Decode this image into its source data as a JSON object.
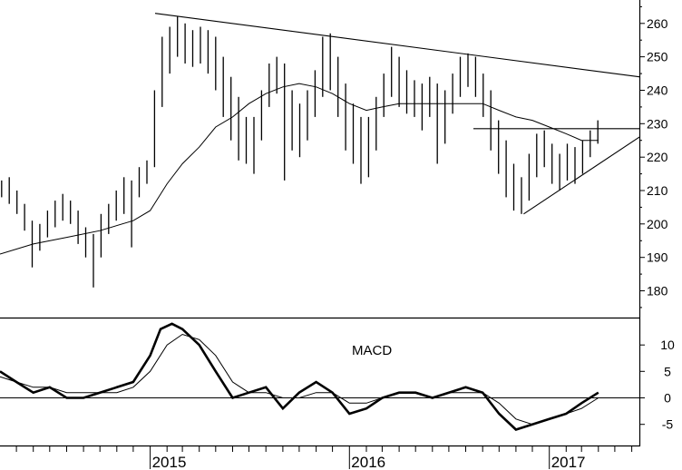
{
  "chart_data": [
    {
      "type": "ohlc",
      "x_axis": {
        "type": "date",
        "ticks": [
          "2015",
          "2016",
          "2017"
        ],
        "tick_dates": [
          "2015-01-01",
          "2016-01-01",
          "2017-01-01"
        ],
        "range": [
          "2014-04-01",
          "2017-06-15"
        ]
      },
      "y_axis": {
        "ticks": [
          180,
          190,
          200,
          210,
          220,
          230,
          240,
          250,
          260
        ],
        "range": [
          172,
          267
        ],
        "position": "right"
      },
      "price_weekly": [
        {
          "t": "2014-04-04",
          "h": 213,
          "l": 208
        },
        {
          "t": "2014-04-18",
          "h": 214,
          "l": 206
        },
        {
          "t": "2014-05-02",
          "h": 210,
          "l": 203
        },
        {
          "t": "2014-05-16",
          "h": 206,
          "l": 198
        },
        {
          "t": "2014-05-30",
          "h": 201,
          "l": 187
        },
        {
          "t": "2014-06-13",
          "h": 200,
          "l": 192
        },
        {
          "t": "2014-06-27",
          "h": 204,
          "l": 196
        },
        {
          "t": "2014-07-11",
          "h": 207,
          "l": 199
        },
        {
          "t": "2014-07-25",
          "h": 209,
          "l": 201
        },
        {
          "t": "2014-08-08",
          "h": 207,
          "l": 200
        },
        {
          "t": "2014-08-22",
          "h": 204,
          "l": 194
        },
        {
          "t": "2014-09-05",
          "h": 199,
          "l": 190
        },
        {
          "t": "2014-09-19",
          "h": 197,
          "l": 181
        },
        {
          "t": "2014-10-03",
          "h": 203,
          "l": 190
        },
        {
          "t": "2014-10-17",
          "h": 206,
          "l": 197
        },
        {
          "t": "2014-10-31",
          "h": 210,
          "l": 201
        },
        {
          "t": "2014-11-14",
          "h": 214,
          "l": 203
        },
        {
          "t": "2014-11-28",
          "h": 213,
          "l": 193
        },
        {
          "t": "2014-12-12",
          "h": 217,
          "l": 208
        },
        {
          "t": "2014-12-26",
          "h": 219,
          "l": 212
        },
        {
          "t": "2015-01-09",
          "h": 240,
          "l": 217
        },
        {
          "t": "2015-01-23",
          "h": 256,
          "l": 235
        },
        {
          "t": "2015-02-06",
          "h": 259,
          "l": 245
        },
        {
          "t": "2015-02-20",
          "h": 262,
          "l": 250
        },
        {
          "t": "2015-03-06",
          "h": 260,
          "l": 248
        },
        {
          "t": "2015-03-20",
          "h": 258,
          "l": 247
        },
        {
          "t": "2015-04-03",
          "h": 259,
          "l": 248
        },
        {
          "t": "2015-04-17",
          "h": 258,
          "l": 245
        },
        {
          "t": "2015-05-01",
          "h": 256,
          "l": 240
        },
        {
          "t": "2015-05-15",
          "h": 250,
          "l": 232
        },
        {
          "t": "2015-05-29",
          "h": 244,
          "l": 225
        },
        {
          "t": "2015-06-12",
          "h": 238,
          "l": 219
        },
        {
          "t": "2015-06-26",
          "h": 232,
          "l": 218
        },
        {
          "t": "2015-07-10",
          "h": 232,
          "l": 215
        },
        {
          "t": "2015-07-24",
          "h": 240,
          "l": 225
        },
        {
          "t": "2015-08-07",
          "h": 248,
          "l": 235
        },
        {
          "t": "2015-08-21",
          "h": 250,
          "l": 239
        },
        {
          "t": "2015-09-04",
          "h": 248,
          "l": 213
        },
        {
          "t": "2015-09-18",
          "h": 240,
          "l": 222
        },
        {
          "t": "2015-10-02",
          "h": 236,
          "l": 220
        },
        {
          "t": "2015-10-16",
          "h": 240,
          "l": 225
        },
        {
          "t": "2015-10-30",
          "h": 246,
          "l": 232
        },
        {
          "t": "2015-11-13",
          "h": 256,
          "l": 238
        },
        {
          "t": "2015-11-27",
          "h": 257,
          "l": 240
        },
        {
          "t": "2015-12-11",
          "h": 250,
          "l": 232
        },
        {
          "t": "2015-12-25",
          "h": 242,
          "l": 222
        },
        {
          "t": "2016-01-08",
          "h": 236,
          "l": 218
        },
        {
          "t": "2016-01-22",
          "h": 232,
          "l": 212
        },
        {
          "t": "2016-02-05",
          "h": 232,
          "l": 214
        },
        {
          "t": "2016-02-19",
          "h": 238,
          "l": 222
        },
        {
          "t": "2016-03-04",
          "h": 245,
          "l": 232
        },
        {
          "t": "2016-03-18",
          "h": 253,
          "l": 238
        },
        {
          "t": "2016-04-01",
          "h": 250,
          "l": 235
        },
        {
          "t": "2016-04-15",
          "h": 246,
          "l": 233
        },
        {
          "t": "2016-04-29",
          "h": 243,
          "l": 232
        },
        {
          "t": "2016-05-13",
          "h": 242,
          "l": 228
        },
        {
          "t": "2016-05-27",
          "h": 244,
          "l": 232
        },
        {
          "t": "2016-06-10",
          "h": 242,
          "l": 218
        },
        {
          "t": "2016-06-24",
          "h": 240,
          "l": 224
        },
        {
          "t": "2016-07-08",
          "h": 245,
          "l": 233
        },
        {
          "t": "2016-07-22",
          "h": 250,
          "l": 238
        },
        {
          "t": "2016-08-05",
          "h": 251,
          "l": 241
        },
        {
          "t": "2016-08-19",
          "h": 250,
          "l": 238
        },
        {
          "t": "2016-09-02",
          "h": 245,
          "l": 232
        },
        {
          "t": "2016-09-16",
          "h": 240,
          "l": 222
        },
        {
          "t": "2016-09-30",
          "h": 231,
          "l": 215
        },
        {
          "t": "2016-10-14",
          "h": 225,
          "l": 208
        },
        {
          "t": "2016-10-28",
          "h": 218,
          "l": 204
        },
        {
          "t": "2016-11-11",
          "h": 214,
          "l": 203
        },
        {
          "t": "2016-11-25",
          "h": 221,
          "l": 207
        },
        {
          "t": "2016-12-09",
          "h": 227,
          "l": 214
        },
        {
          "t": "2016-12-23",
          "h": 228,
          "l": 217
        },
        {
          "t": "2017-01-06",
          "h": 224,
          "l": 212
        },
        {
          "t": "2017-01-20",
          "h": 221,
          "l": 210
        },
        {
          "t": "2017-02-03",
          "h": 224,
          "l": 213
        },
        {
          "t": "2017-02-17",
          "h": 223,
          "l": 212
        },
        {
          "t": "2017-03-03",
          "h": 225,
          "l": 215
        },
        {
          "t": "2017-03-17",
          "h": 228,
          "l": 220
        },
        {
          "t": "2017-03-31",
          "h": 231,
          "l": 224
        }
      ],
      "moving_average": [
        {
          "t": "2014-04-01",
          "v": 191
        },
        {
          "t": "2014-06-01",
          "v": 194
        },
        {
          "t": "2014-08-01",
          "v": 196
        },
        {
          "t": "2014-10-01",
          "v": 198
        },
        {
          "t": "2014-12-01",
          "v": 201
        },
        {
          "t": "2015-01-01",
          "v": 204
        },
        {
          "t": "2015-02-01",
          "v": 212
        },
        {
          "t": "2015-03-01",
          "v": 218
        },
        {
          "t": "2015-04-01",
          "v": 223
        },
        {
          "t": "2015-05-01",
          "v": 229
        },
        {
          "t": "2015-06-01",
          "v": 232
        },
        {
          "t": "2015-07-01",
          "v": 236
        },
        {
          "t": "2015-08-01",
          "v": 239
        },
        {
          "t": "2015-09-01",
          "v": 241
        },
        {
          "t": "2015-10-01",
          "v": 242
        },
        {
          "t": "2015-11-01",
          "v": 241
        },
        {
          "t": "2015-12-01",
          "v": 239
        },
        {
          "t": "2016-01-01",
          "v": 236
        },
        {
          "t": "2016-02-01",
          "v": 234
        },
        {
          "t": "2016-03-01",
          "v": 235
        },
        {
          "t": "2016-04-01",
          "v": 236
        },
        {
          "t": "2016-05-01",
          "v": 236
        },
        {
          "t": "2016-06-01",
          "v": 236
        },
        {
          "t": "2016-07-01",
          "v": 236
        },
        {
          "t": "2016-08-01",
          "v": 236
        },
        {
          "t": "2016-09-01",
          "v": 236
        },
        {
          "t": "2016-10-01",
          "v": 234
        },
        {
          "t": "2016-11-01",
          "v": 232
        },
        {
          "t": "2016-12-01",
          "v": 231
        },
        {
          "t": "2017-01-01",
          "v": 229
        },
        {
          "t": "2017-02-01",
          "v": 227
        },
        {
          "t": "2017-03-01",
          "v": 225
        },
        {
          "t": "2017-04-01",
          "v": 225
        }
      ],
      "trendlines": [
        {
          "name": "upper-resistance",
          "points": [
            {
              "t": "2015-01-10",
              "v": 263
            },
            {
              "t": "2017-06-15",
              "v": 244
            }
          ]
        },
        {
          "name": "horizontal-resistance",
          "points": [
            {
              "t": "2016-08-15",
              "v": 228.5
            },
            {
              "t": "2017-06-15",
              "v": 228.5
            }
          ]
        },
        {
          "name": "rising-support",
          "points": [
            {
              "t": "2016-11-15",
              "v": 203
            },
            {
              "t": "2017-06-15",
              "v": 226
            }
          ]
        }
      ]
    },
    {
      "type": "line",
      "title": "MACD",
      "y_axis": {
        "ticks": [
          -5,
          0,
          5,
          10
        ],
        "range": [
          -9,
          15
        ],
        "position": "right"
      },
      "zero_line": 0,
      "series": [
        {
          "style": "macd",
          "points": [
            {
              "t": "2014-04-01",
              "v": 5
            },
            {
              "t": "2014-05-01",
              "v": 3
            },
            {
              "t": "2014-06-01",
              "v": 1
            },
            {
              "t": "2014-07-01",
              "v": 2
            },
            {
              "t": "2014-08-01",
              "v": 0
            },
            {
              "t": "2014-09-01",
              "v": 0
            },
            {
              "t": "2014-10-01",
              "v": 1
            },
            {
              "t": "2014-11-01",
              "v": 2
            },
            {
              "t": "2014-12-01",
              "v": 3
            },
            {
              "t": "2015-01-01",
              "v": 8
            },
            {
              "t": "2015-01-20",
              "v": 13
            },
            {
              "t": "2015-02-10",
              "v": 14
            },
            {
              "t": "2015-03-01",
              "v": 13
            },
            {
              "t": "2015-04-01",
              "v": 10
            },
            {
              "t": "2015-05-01",
              "v": 5
            },
            {
              "t": "2015-06-01",
              "v": 0
            },
            {
              "t": "2015-07-01",
              "v": 1
            },
            {
              "t": "2015-08-01",
              "v": 2
            },
            {
              "t": "2015-09-01",
              "v": -2
            },
            {
              "t": "2015-10-01",
              "v": 1
            },
            {
              "t": "2015-11-01",
              "v": 3
            },
            {
              "t": "2015-12-01",
              "v": 1
            },
            {
              "t": "2016-01-01",
              "v": -3
            },
            {
              "t": "2016-02-01",
              "v": -2
            },
            {
              "t": "2016-03-01",
              "v": 0
            },
            {
              "t": "2016-04-01",
              "v": 1
            },
            {
              "t": "2016-05-01",
              "v": 1
            },
            {
              "t": "2016-06-01",
              "v": 0
            },
            {
              "t": "2016-07-01",
              "v": 1
            },
            {
              "t": "2016-08-01",
              "v": 2
            },
            {
              "t": "2016-09-01",
              "v": 1
            },
            {
              "t": "2016-10-01",
              "v": -3
            },
            {
              "t": "2016-11-01",
              "v": -6
            },
            {
              "t": "2016-12-01",
              "v": -5
            },
            {
              "t": "2017-01-01",
              "v": -4
            },
            {
              "t": "2017-02-01",
              "v": -3
            },
            {
              "t": "2017-03-01",
              "v": -1
            },
            {
              "t": "2017-04-01",
              "v": 1
            }
          ]
        },
        {
          "style": "signal",
          "points": [
            {
              "t": "2014-04-01",
              "v": 4
            },
            {
              "t": "2014-05-01",
              "v": 3
            },
            {
              "t": "2014-06-01",
              "v": 2
            },
            {
              "t": "2014-07-01",
              "v": 2
            },
            {
              "t": "2014-08-01",
              "v": 1
            },
            {
              "t": "2014-09-01",
              "v": 1
            },
            {
              "t": "2014-10-01",
              "v": 1
            },
            {
              "t": "2014-11-01",
              "v": 1
            },
            {
              "t": "2014-12-01",
              "v": 2
            },
            {
              "t": "2015-01-01",
              "v": 5
            },
            {
              "t": "2015-02-01",
              "v": 10
            },
            {
              "t": "2015-03-01",
              "v": 12
            },
            {
              "t": "2015-04-01",
              "v": 11
            },
            {
              "t": "2015-05-01",
              "v": 8
            },
            {
              "t": "2015-06-01",
              "v": 3
            },
            {
              "t": "2015-07-01",
              "v": 1
            },
            {
              "t": "2015-08-01",
              "v": 1
            },
            {
              "t": "2015-09-01",
              "v": 0
            },
            {
              "t": "2015-10-01",
              "v": 0
            },
            {
              "t": "2015-11-01",
              "v": 1
            },
            {
              "t": "2015-12-01",
              "v": 1
            },
            {
              "t": "2016-01-01",
              "v": -1
            },
            {
              "t": "2016-02-01",
              "v": -1
            },
            {
              "t": "2016-03-01",
              "v": 0
            },
            {
              "t": "2016-04-01",
              "v": 1
            },
            {
              "t": "2016-05-01",
              "v": 1
            },
            {
              "t": "2016-06-01",
              "v": 0
            },
            {
              "t": "2016-07-01",
              "v": 1
            },
            {
              "t": "2016-08-01",
              "v": 1
            },
            {
              "t": "2016-09-01",
              "v": 1
            },
            {
              "t": "2016-10-01",
              "v": -1
            },
            {
              "t": "2016-11-01",
              "v": -4
            },
            {
              "t": "2016-12-01",
              "v": -5
            },
            {
              "t": "2017-01-01",
              "v": -4
            },
            {
              "t": "2017-02-01",
              "v": -3
            },
            {
              "t": "2017-03-01",
              "v": -2
            },
            {
              "t": "2017-04-01",
              "v": 0
            }
          ]
        }
      ]
    }
  ]
}
